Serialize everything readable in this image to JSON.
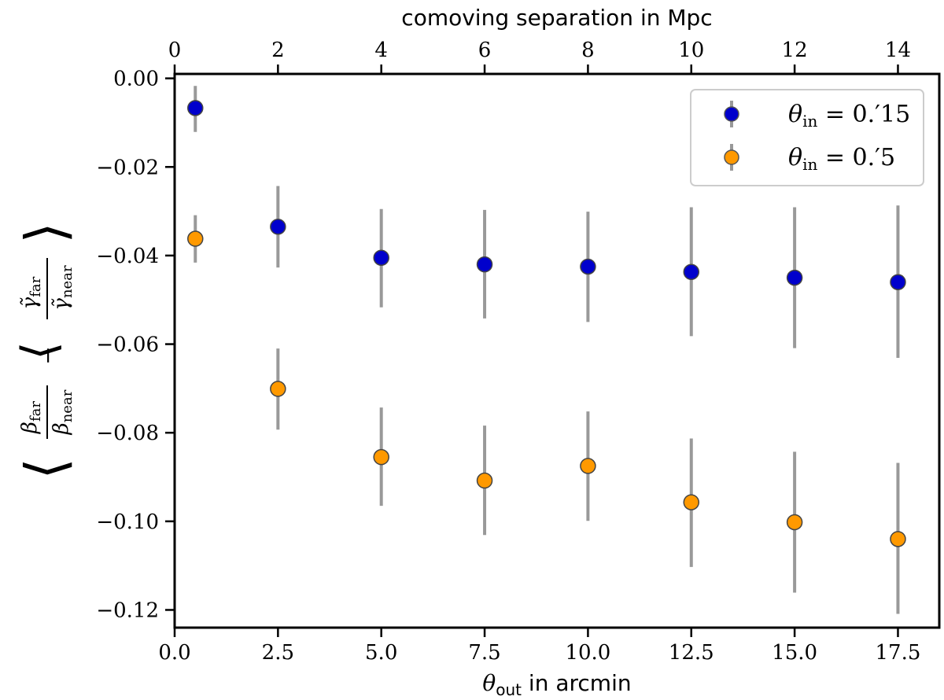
{
  "chart_data": {
    "type": "scatter",
    "xlabel_symbol": "θ",
    "xlabel_sub": "out",
    "xlabel_text": " in arcmin",
    "top_xlabel": "comoving separation in Mpc",
    "ylabel": "⟨β_far/β_near − γ̃_far/γ̃_near⟩",
    "xlim": [
      0,
      18.5
    ],
    "ylim": [
      -0.124,
      0.001
    ],
    "x_ticks": [
      0.0,
      2.5,
      5.0,
      7.5,
      10.0,
      12.5,
      15.0,
      17.5
    ],
    "x_tick_labels": [
      "0.0",
      "2.5",
      "5.0",
      "7.5",
      "10.0",
      "12.5",
      "15.0",
      "17.5"
    ],
    "y_ticks": [
      0.0,
      -0.02,
      -0.04,
      -0.06,
      -0.08,
      -0.1,
      -0.12
    ],
    "y_tick_labels": [
      "0.00",
      "−0.02",
      "−0.04",
      "−0.06",
      "−0.08",
      "−0.10",
      "−0.12"
    ],
    "top_ticks_mpc": [
      0,
      2,
      4,
      6,
      8,
      10,
      12,
      14
    ],
    "top_tick_labels": [
      "0",
      "2",
      "4",
      "6",
      "8",
      "10",
      "12",
      "14"
    ],
    "top_mpc_per_arcmin": 0.8,
    "errorbar_color": "#999999",
    "series": [
      {
        "name": "θin = 0.15",
        "legend_math": "θ",
        "legend_sub": "in",
        "legend_rest": " = 0.′15",
        "color": "#0000cc",
        "x": [
          0.5,
          2.5,
          5.0,
          7.5,
          10.0,
          12.5,
          15.0,
          17.5
        ],
        "y": [
          -0.0067,
          -0.0335,
          -0.0405,
          -0.042,
          -0.0425,
          -0.0437,
          -0.045,
          -0.046
        ],
        "yerr_low": [
          -0.0121,
          -0.0427,
          -0.0517,
          -0.0542,
          -0.055,
          -0.0582,
          -0.0609,
          -0.0631
        ],
        "yerr_high": [
          -0.0017,
          -0.0243,
          -0.0295,
          -0.0297,
          -0.0301,
          -0.0291,
          -0.0291,
          -0.0287
        ]
      },
      {
        "name": "θin = 0.5",
        "legend_math": "θ",
        "legend_sub": "in",
        "legend_rest": " = 0.′5",
        "color": "#ff9900",
        "x": [
          0.5,
          2.5,
          5.0,
          7.5,
          10.0,
          12.5,
          15.0,
          17.5
        ],
        "y": [
          -0.0362,
          -0.0701,
          -0.0855,
          -0.0908,
          -0.0875,
          -0.0957,
          -0.1002,
          -0.104
        ],
        "yerr_low": [
          -0.0416,
          -0.0793,
          -0.0965,
          -0.1031,
          -0.0999,
          -0.1103,
          -0.1161,
          -0.1209
        ],
        "yerr_high": [
          -0.0309,
          -0.061,
          -0.0743,
          -0.0784,
          -0.0752,
          -0.0813,
          -0.0843,
          -0.0868
        ]
      }
    ]
  }
}
